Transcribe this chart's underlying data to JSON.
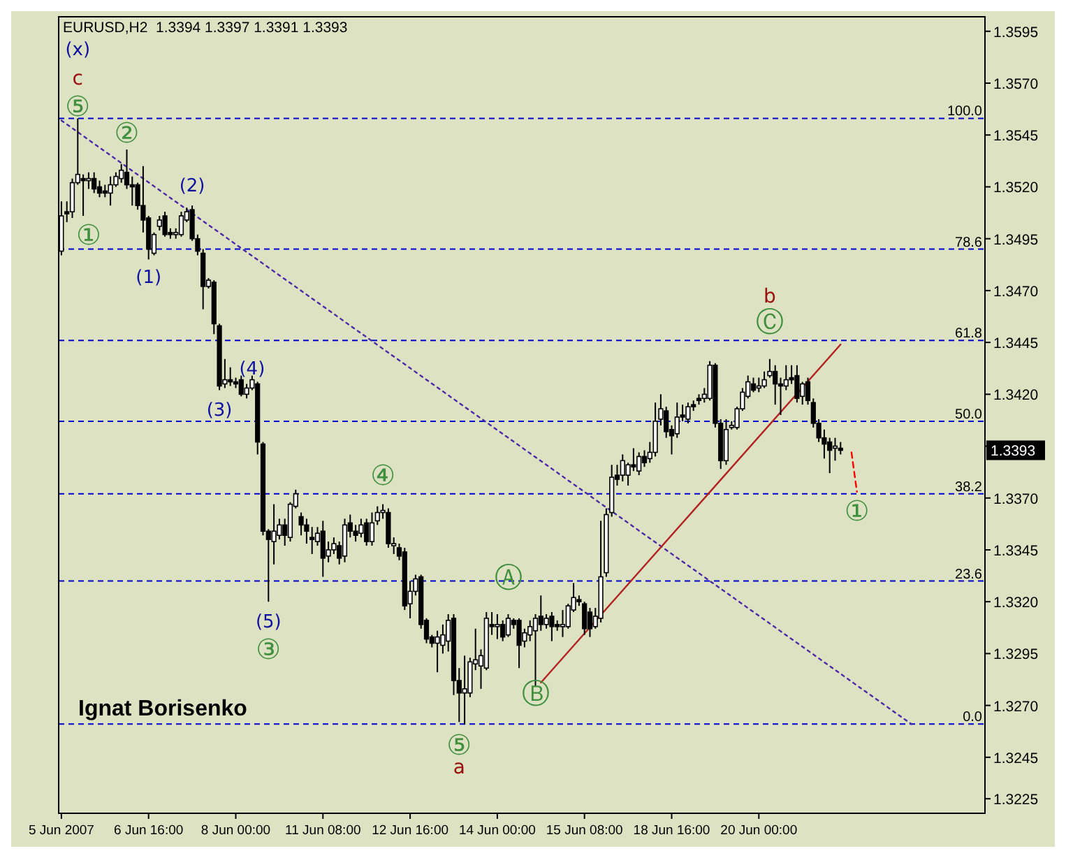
{
  "chart_data": {
    "type": "candlestick",
    "title": "EURUSD,H2  1.3394 1.3397 1.3391 1.3393",
    "categories": [
      "5 Jun 2007",
      null,
      null,
      null,
      null,
      null,
      null,
      null,
      null,
      null,
      null,
      null,
      null,
      null,
      null,
      null,
      "6 Jun 16:00",
      null,
      null,
      null,
      null,
      null,
      null,
      null,
      null,
      null,
      null,
      null,
      null,
      null,
      null,
      null,
      "8 Jun 00:00",
      null,
      null,
      null,
      null,
      null,
      null,
      null,
      null,
      null,
      null,
      null,
      null,
      null,
      null,
      null,
      "11 Jun 08:00",
      null,
      null,
      null,
      null,
      null,
      null,
      null,
      null,
      null,
      null,
      null,
      null,
      null,
      null,
      null,
      "12 Jun 16:00",
      null,
      null,
      null,
      null,
      null,
      null,
      null,
      null,
      null,
      null,
      null,
      null,
      null,
      null,
      null,
      "14 Jun 00:00",
      null,
      null,
      null,
      null,
      null,
      null,
      null,
      null,
      null,
      null,
      null,
      null,
      null,
      null,
      null,
      "15 Jun 08:00",
      null,
      null,
      null,
      null,
      null,
      null,
      null,
      null,
      null,
      null,
      null,
      null,
      null,
      null,
      null,
      "18 Jun 16:00",
      null,
      null,
      null,
      null,
      null,
      null,
      null,
      null,
      null,
      null,
      null,
      null,
      null,
      null,
      null,
      "20 Jun 00:00",
      null,
      null,
      null,
      null,
      null,
      null,
      null,
      null,
      null,
      null,
      null,
      null,
      null,
      null,
      null,
      null,
      null,
      null,
      null,
      null,
      null,
      null,
      null,
      null,
      null,
      null,
      null,
      null,
      null,
      null,
      null,
      null,
      null,
      null,
      null,
      null,
      null,
      null,
      null,
      null,
      null
    ],
    "ohlc": [
      [
        1.3489,
        1.3513,
        1.3487,
        1.3506
      ],
      [
        1.3508,
        1.3513,
        1.3503,
        1.3507
      ],
      [
        1.3508,
        1.3524,
        1.3505,
        1.3522
      ],
      [
        1.3522,
        1.3553,
        1.3521,
        1.3526
      ],
      [
        1.3524,
        1.3526,
        1.3506,
        1.3523
      ],
      [
        1.3523,
        1.3527,
        1.3519,
        1.3524
      ],
      [
        1.3524,
        1.3527,
        1.3517,
        1.3519
      ],
      [
        1.352,
        1.3523,
        1.3515,
        1.3517
      ],
      [
        1.3518,
        1.3521,
        1.3515,
        1.3517
      ],
      [
        1.3517,
        1.3525,
        1.3511,
        1.3521
      ],
      [
        1.3521,
        1.3527,
        1.352,
        1.3525
      ],
      [
        1.3524,
        1.3531,
        1.3522,
        1.3528
      ],
      [
        1.3527,
        1.3538,
        1.3519,
        1.3521
      ],
      [
        1.3521,
        1.3525,
        1.3511,
        1.352
      ],
      [
        1.3521,
        1.3522,
        1.3509,
        1.3511
      ],
      [
        1.3511,
        1.353,
        1.3498,
        1.3504
      ],
      [
        1.3505,
        1.3506,
        1.3485,
        1.349
      ],
      [
        1.3488,
        1.3498,
        1.3487,
        1.3497
      ],
      [
        1.3501,
        1.3506,
        1.3499,
        1.3504
      ],
      [
        1.3506,
        1.3508,
        1.3496,
        1.3497
      ],
      [
        1.3498,
        1.35,
        1.3495,
        1.3497
      ],
      [
        1.3497,
        1.35,
        1.3495,
        1.3498
      ],
      [
        1.3497,
        1.3508,
        1.3496,
        1.3506
      ],
      [
        1.3504,
        1.351,
        1.3503,
        1.3508
      ],
      [
        1.3509,
        1.3511,
        1.3494,
        1.3495
      ],
      [
        1.3495,
        1.3497,
        1.3487,
        1.3489
      ],
      [
        1.3488,
        1.349,
        1.3461,
        1.3472
      ],
      [
        1.3472,
        1.3476,
        1.3471,
        1.3475
      ],
      [
        1.3474,
        1.3475,
        1.3449,
        1.3454
      ],
      [
        1.3453,
        1.3454,
        1.3422,
        1.3424
      ],
      [
        1.3425,
        1.3437,
        1.3423,
        1.3427
      ],
      [
        1.3427,
        1.3433,
        1.3424,
        1.3426
      ],
      [
        1.3426,
        1.3428,
        1.3423,
        1.3425
      ],
      [
        1.3427,
        1.3429,
        1.3419,
        1.342
      ],
      [
        1.342,
        1.3425,
        1.3418,
        1.3423
      ],
      [
        1.3423,
        1.3429,
        1.3422,
        1.3427
      ],
      [
        1.3425,
        1.3426,
        1.3391,
        1.3397
      ],
      [
        1.3396,
        1.3397,
        1.3352,
        1.3354
      ],
      [
        1.3354,
        1.3355,
        1.332,
        1.335
      ],
      [
        1.3349,
        1.3367,
        1.3338,
        1.3354
      ],
      [
        1.3352,
        1.336,
        1.335,
        1.3357
      ],
      [
        1.3357,
        1.336,
        1.3347,
        1.3352
      ],
      [
        1.3351,
        1.3368,
        1.3349,
        1.3367
      ],
      [
        1.3366,
        1.3374,
        1.3365,
        1.3372
      ],
      [
        1.3361,
        1.3363,
        1.3352,
        1.3357
      ],
      [
        1.3357,
        1.336,
        1.3348,
        1.3354
      ],
      [
        1.3351,
        1.3356,
        1.3343,
        1.335
      ],
      [
        1.3349,
        1.3356,
        1.3347,
        1.3353
      ],
      [
        1.3354,
        1.3359,
        1.3332,
        1.3341
      ],
      [
        1.3342,
        1.3349,
        1.3339,
        1.3345
      ],
      [
        1.3345,
        1.3351,
        1.3343,
        1.3348
      ],
      [
        1.3347,
        1.3349,
        1.3338,
        1.3341
      ],
      [
        1.3342,
        1.336,
        1.3339,
        1.3357
      ],
      [
        1.3358,
        1.3362,
        1.3351,
        1.3354
      ],
      [
        1.3354,
        1.3357,
        1.3349,
        1.3352
      ],
      [
        1.3353,
        1.336,
        1.3351,
        1.3357
      ],
      [
        1.3358,
        1.336,
        1.3347,
        1.3349
      ],
      [
        1.3349,
        1.3363,
        1.3347,
        1.3358
      ],
      [
        1.3359,
        1.3366,
        1.3357,
        1.3363
      ],
      [
        1.3363,
        1.3367,
        1.336,
        1.3364
      ],
      [
        1.3363,
        1.3365,
        1.3346,
        1.3348
      ],
      [
        1.3347,
        1.3351,
        1.3343,
        1.3348
      ],
      [
        1.3346,
        1.3348,
        1.334,
        1.3342
      ],
      [
        1.3344,
        1.3346,
        1.3316,
        1.3318
      ],
      [
        1.3319,
        1.333,
        1.3312,
        1.3325
      ],
      [
        1.3325,
        1.3333,
        1.3323,
        1.3331
      ],
      [
        1.3332,
        1.3333,
        1.3307,
        1.3309
      ],
      [
        1.3311,
        1.3312,
        1.33,
        1.3302
      ],
      [
        1.3303,
        1.3304,
        1.3298,
        1.33
      ],
      [
        1.33,
        1.3306,
        1.3286,
        1.3303
      ],
      [
        1.3299,
        1.3309,
        1.3295,
        1.3304
      ],
      [
        1.3301,
        1.3314,
        1.3296,
        1.3311
      ],
      [
        1.3312,
        1.3314,
        1.3275,
        1.3282
      ],
      [
        1.3282,
        1.3288,
        1.3262,
        1.3276
      ],
      [
        1.3276,
        1.3294,
        1.3261,
        1.3278
      ],
      [
        1.3276,
        1.3293,
        1.3274,
        1.3291
      ],
      [
        1.329,
        1.3307,
        1.3287,
        1.3292
      ],
      [
        1.3289,
        1.3297,
        1.3278,
        1.3294
      ],
      [
        1.3288,
        1.3315,
        1.3287,
        1.3312
      ],
      [
        1.3309,
        1.3315,
        1.3304,
        1.3308
      ],
      [
        1.3308,
        1.3314,
        1.3302,
        1.3309
      ],
      [
        1.3309,
        1.3311,
        1.3301,
        1.3303
      ],
      [
        1.3304,
        1.3314,
        1.3303,
        1.3312
      ],
      [
        1.3311,
        1.3312,
        1.3307,
        1.3309
      ],
      [
        1.3311,
        1.3312,
        1.3288,
        1.3299
      ],
      [
        1.3301,
        1.3307,
        1.3298,
        1.3305
      ],
      [
        1.3304,
        1.3311,
        1.3301,
        1.3308
      ],
      [
        1.3306,
        1.3314,
        1.3279,
        1.3312
      ],
      [
        1.3313,
        1.3323,
        1.3306,
        1.3309
      ],
      [
        1.3309,
        1.3314,
        1.3307,
        1.3312
      ],
      [
        1.3313,
        1.3315,
        1.3301,
        1.3308
      ],
      [
        1.3309,
        1.3311,
        1.3306,
        1.3308
      ],
      [
        1.3308,
        1.3316,
        1.3303,
        1.3309
      ],
      [
        1.3308,
        1.3319,
        1.3307,
        1.3318
      ],
      [
        1.3316,
        1.3329,
        1.3315,
        1.3322
      ],
      [
        1.3321,
        1.3323,
        1.3318,
        1.332
      ],
      [
        1.3319,
        1.332,
        1.3304,
        1.3307
      ],
      [
        1.3315,
        1.3317,
        1.3303,
        1.3307
      ],
      [
        1.3308,
        1.3317,
        1.3307,
        1.3313
      ],
      [
        1.3312,
        1.3359,
        1.331,
        1.3332
      ],
      [
        1.3334,
        1.3365,
        1.3332,
        1.3362
      ],
      [
        1.3363,
        1.3386,
        1.3361,
        1.338
      ],
      [
        1.3381,
        1.3386,
        1.3376,
        1.3379
      ],
      [
        1.3381,
        1.3391,
        1.3378,
        1.3388
      ],
      [
        1.3381,
        1.3387,
        1.3376,
        1.3386
      ],
      [
        1.3386,
        1.3394,
        1.3383,
        1.3385
      ],
      [
        1.3383,
        1.3392,
        1.3381,
        1.339
      ],
      [
        1.339,
        1.3393,
        1.3385,
        1.3387
      ],
      [
        1.3389,
        1.3397,
        1.3387,
        1.3392
      ],
      [
        1.3392,
        1.3416,
        1.339,
        1.3407
      ],
      [
        1.3408,
        1.342,
        1.3405,
        1.3413
      ],
      [
        1.3412,
        1.3414,
        1.3399,
        1.3402
      ],
      [
        1.3403,
        1.3405,
        1.3391,
        1.34
      ],
      [
        1.3401,
        1.3416,
        1.3399,
        1.3409
      ],
      [
        1.341,
        1.3415,
        1.3407,
        1.3409
      ],
      [
        1.3408,
        1.3416,
        1.3406,
        1.3414
      ],
      [
        1.3415,
        1.3417,
        1.3412,
        1.3414
      ],
      [
        1.3418,
        1.342,
        1.3415,
        1.3417
      ],
      [
        1.3418,
        1.3423,
        1.3416,
        1.342
      ],
      [
        1.3418,
        1.3436,
        1.3417,
        1.3434
      ],
      [
        1.3434,
        1.3435,
        1.3404,
        1.3406
      ],
      [
        1.3406,
        1.3408,
        1.3384,
        1.3388
      ],
      [
        1.3388,
        1.3408,
        1.3386,
        1.3403
      ],
      [
        1.3404,
        1.3407,
        1.3403,
        1.3405
      ],
      [
        1.3404,
        1.3414,
        1.3403,
        1.3413
      ],
      [
        1.3413,
        1.3423,
        1.3412,
        1.3421
      ],
      [
        1.3419,
        1.3429,
        1.3418,
        1.3426
      ],
      [
        1.3425,
        1.3428,
        1.3421,
        1.3422
      ],
      [
        1.3423,
        1.3428,
        1.3421,
        1.3424
      ],
      [
        1.3424,
        1.3431,
        1.3423,
        1.3427
      ],
      [
        1.3429,
        1.3437,
        1.3428,
        1.3431
      ],
      [
        1.3431,
        1.3434,
        1.3415,
        1.3425
      ],
      [
        1.3425,
        1.3428,
        1.341,
        1.3424
      ],
      [
        1.3424,
        1.3434,
        1.3422,
        1.3427
      ],
      [
        1.3428,
        1.3434,
        1.3425,
        1.3427
      ],
      [
        1.3429,
        1.3434,
        1.3416,
        1.3418
      ],
      [
        1.3419,
        1.3426,
        1.3415,
        1.3425
      ],
      [
        1.3426,
        1.3428,
        1.3415,
        1.3417
      ],
      [
        1.3416,
        1.3418,
        1.3404,
        1.3406
      ],
      [
        1.3406,
        1.3408,
        1.3397,
        1.3399
      ],
      [
        1.3399,
        1.3403,
        1.3389,
        1.3396
      ],
      [
        1.3397,
        1.3399,
        1.3382,
        1.3393
      ],
      [
        1.3394,
        1.3399,
        1.3388,
        1.3395
      ],
      [
        1.3394,
        1.3397,
        1.3391,
        1.3393
      ],
      null,
      null,
      null,
      null,
      null,
      null,
      null,
      null,
      null,
      null,
      null,
      null,
      null,
      null,
      null,
      null,
      null,
      null,
      null,
      null,
      null,
      null,
      null,
      null,
      null,
      null
    ],
    "color": "#000000",
    "series": [
      {
        "type": "line",
        "values": [
          1.3552,
          null,
          null,
          null,
          null,
          null,
          null,
          null,
          null,
          null,
          null,
          null,
          null,
          null,
          null,
          null,
          null,
          null,
          null,
          null,
          null,
          null,
          null,
          null,
          null,
          null,
          null,
          null,
          null,
          null,
          null,
          null,
          null,
          null,
          null,
          null,
          null,
          null,
          null,
          null,
          null,
          null,
          null,
          null,
          null,
          null,
          null,
          null,
          null,
          null,
          null,
          null,
          null,
          null,
          null,
          null,
          null,
          null,
          null,
          null,
          null,
          null,
          null,
          null,
          null,
          null,
          null,
          null,
          null,
          null,
          null,
          null,
          null,
          null,
          null,
          null,
          null,
          null,
          null,
          null,
          null,
          null,
          null,
          null,
          null,
          null,
          null,
          null,
          null,
          null,
          null,
          null,
          null,
          null,
          null,
          null,
          null,
          null,
          null,
          null,
          null,
          null,
          null,
          null,
          null,
          null,
          null,
          null,
          null,
          null,
          null,
          null,
          null,
          null,
          null,
          null,
          null,
          null,
          null,
          null,
          null,
          null,
          null,
          null,
          null,
          null,
          null,
          null,
          null,
          null,
          null,
          null,
          null,
          null,
          null,
          null,
          null,
          null,
          null,
          null,
          null,
          null,
          null,
          null,
          null,
          null,
          null,
          null,
          null,
          null,
          null,
          null,
          null,
          null,
          null,
          null,
          1.3261,
          null,
          null,
          null,
          null,
          null,
          null,
          null,
          null,
          null,
          null,
          null,
          null,
          null
        ],
        "color": "#4b2aa8",
        "line_style": "dotted"
      },
      {
        "type": "line",
        "values": [
          null,
          null,
          null,
          null,
          null,
          null,
          null,
          null,
          null,
          null,
          null,
          null,
          null,
          null,
          null,
          null,
          null,
          null,
          null,
          null,
          null,
          null,
          null,
          null,
          null,
          null,
          null,
          null,
          null,
          null,
          null,
          null,
          null,
          null,
          null,
          null,
          null,
          null,
          null,
          null,
          null,
          null,
          null,
          null,
          null,
          null,
          null,
          null,
          null,
          null,
          null,
          null,
          null,
          null,
          null,
          null,
          null,
          null,
          null,
          null,
          null,
          null,
          null,
          null,
          null,
          null,
          null,
          null,
          null,
          null,
          null,
          null,
          null,
          null,
          null,
          null,
          null,
          null,
          null,
          null,
          null,
          null,
          null,
          null,
          null,
          null,
          null,
          null,
          1.3281,
          null,
          null,
          null,
          null,
          null,
          null,
          null,
          null,
          null,
          null,
          null,
          null,
          null,
          null,
          null,
          null,
          null,
          null,
          null,
          null,
          null,
          null,
          null,
          null,
          null,
          null,
          null,
          null,
          null,
          null,
          null,
          null,
          null,
          null,
          null,
          null,
          null,
          null,
          null,
          null,
          null,
          null,
          null,
          null,
          null,
          null,
          null,
          null,
          null,
          null,
          null,
          null,
          null,
          null,
          1.3444,
          null,
          null,
          null,
          null,
          null,
          null,
          null,
          null,
          null,
          null,
          null,
          null,
          null,
          null,
          null,
          null,
          null,
          null,
          null,
          null,
          null,
          null,
          null,
          null,
          null,
          null
        ],
        "color": "#b22222",
        "line_style": "solid"
      },
      {
        "type": "line",
        "values": [
          null,
          null,
          null,
          null,
          null,
          null,
          null,
          null,
          null,
          null,
          null,
          null,
          null,
          null,
          null,
          null,
          null,
          null,
          null,
          null,
          null,
          null,
          null,
          null,
          null,
          null,
          null,
          null,
          null,
          null,
          null,
          null,
          null,
          null,
          null,
          null,
          null,
          null,
          null,
          null,
          null,
          null,
          null,
          null,
          null,
          null,
          null,
          null,
          null,
          null,
          null,
          null,
          null,
          null,
          null,
          null,
          null,
          null,
          null,
          null,
          null,
          null,
          null,
          null,
          null,
          null,
          null,
          null,
          null,
          null,
          null,
          null,
          null,
          null,
          null,
          null,
          null,
          null,
          null,
          null,
          null,
          null,
          null,
          null,
          null,
          null,
          null,
          null,
          null,
          null,
          null,
          null,
          null,
          null,
          null,
          null,
          null,
          null,
          null,
          null,
          null,
          null,
          null,
          null,
          null,
          null,
          null,
          null,
          null,
          null,
          null,
          null,
          null,
          null,
          null,
          null,
          null,
          null,
          null,
          null,
          null,
          null,
          null,
          null,
          null,
          null,
          null,
          null,
          null,
          null,
          null,
          null,
          null,
          null,
          null,
          null,
          null,
          null,
          null,
          null,
          null,
          null,
          null,
          null,
          null,
          1.3392,
          1.3373,
          null,
          null,
          null,
          null,
          null,
          null,
          null,
          null,
          null,
          null,
          null,
          null,
          null,
          null,
          null,
          null,
          null,
          null,
          null,
          null,
          null,
          null,
          null
        ],
        "color": "#ff0000",
        "line_style": "dashed"
      }
    ],
    "ylim": [
      1.3218,
      1.3602
    ],
    "yticks": [
      1.3225,
      1.3245,
      {
        "value": 1.327,
        "label": "1.3270"
      },
      1.3295,
      {
        "value": 1.332,
        "label": "1.3320"
      },
      1.3345,
      {
        "value": 1.337,
        "label": "1.3370"
      },
      {
        "value": 1.3395,
        "label": null
      },
      {
        "value": 1.342,
        "label": "1.3420"
      },
      1.3445,
      {
        "value": 1.347,
        "label": "1.3470"
      },
      1.3495,
      {
        "value": 1.352,
        "label": "1.3520"
      },
      1.3545,
      {
        "value": 1.357,
        "label": "1.3570"
      },
      1.3595
    ],
    "ref_lines": [
      {
        "axis": "y",
        "value": 1.3553,
        "color": "#0000cc",
        "line_style": "dashed"
      },
      {
        "axis": "y",
        "value": 1.349,
        "color": "#0000cc",
        "line_style": "dashed"
      },
      {
        "axis": "y",
        "value": 1.3446,
        "color": "#0000cc",
        "line_style": "dashed"
      },
      {
        "axis": "y",
        "value": 1.3407,
        "color": "#0000cc",
        "line_style": "dashed"
      },
      {
        "axis": "y",
        "value": 1.3372,
        "color": "#0000cc",
        "line_style": "dashed"
      },
      {
        "axis": "y",
        "value": 1.333,
        "color": "#0000cc",
        "line_style": "dashed"
      },
      {
        "axis": "y",
        "value": 1.3261,
        "color": "#0000cc",
        "line_style": "dashed"
      }
    ],
    "annotations": [
      "(x)",
      "c",
      "⑤",
      "①",
      "②",
      "(1)",
      "(2)",
      "(3)",
      "(4)",
      "(5)",
      "③",
      "④",
      "⑤",
      "a",
      "Ⓐ",
      "Ⓑ",
      "b",
      "Ⓒ",
      "①",
      "Ignat Borisenko",
      {
        "text": "100.0",
        "y": 1.3553
      },
      {
        "text": "78.6",
        "y": 1.349
      },
      {
        "text": "61.8",
        "y": 1.3446
      },
      {
        "text": "50.0",
        "y": 1.3407
      },
      {
        "text": "38.2",
        "y": 1.3372
      },
      {
        "text": "23.6",
        "y": 1.333
      },
      {
        "text": "0.0",
        "y": 1.3261
      },
      {
        "text": "1.3393",
        "y": 1.3393
      }
    ]
  }
}
